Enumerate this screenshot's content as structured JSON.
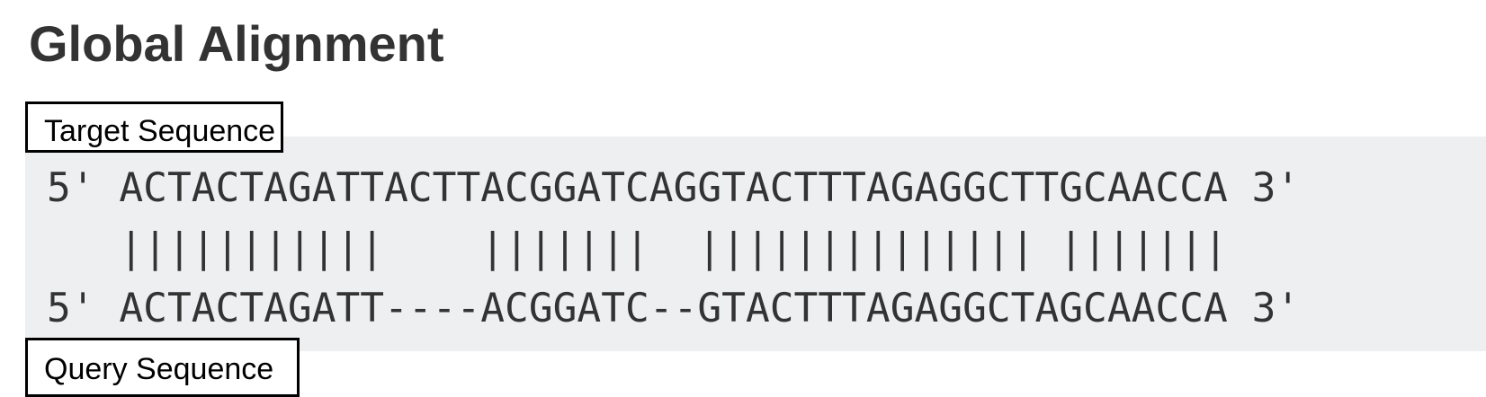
{
  "title": "Global Alignment",
  "labels": {
    "target": "Target Sequence",
    "query": "Query Sequence"
  },
  "alignment": {
    "target_line": "5' ACTACTAGATTACTTACGGATCAGGTACTTTAGAGGCTTGCAACCA 3'",
    "match_line": "   |||||||||||    |||||||  |||||||||||||| |||||||",
    "query_line": "5' ACTACTAGATT----ACGGATC--GTACTTTAGAGGCTAGCAACCA 3'"
  },
  "colors": {
    "panel_background": "#eeeff1",
    "text": "#333333",
    "label_border": "#000000"
  }
}
